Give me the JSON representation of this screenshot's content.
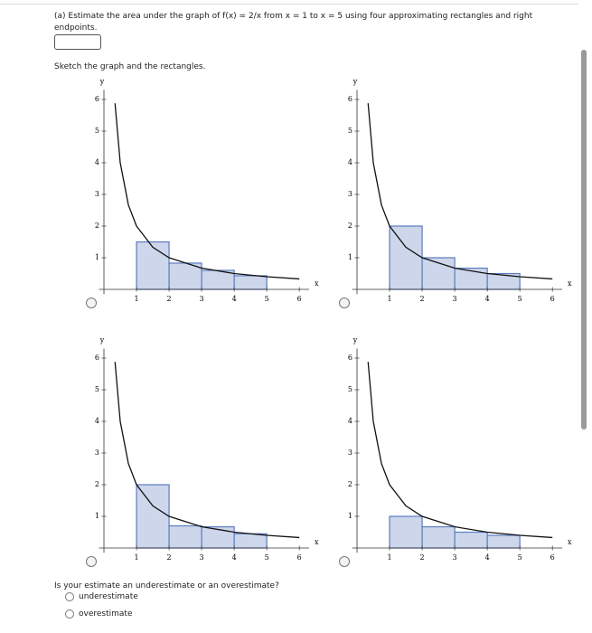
{
  "question": {
    "prompt": "(a) Estimate the area under the graph of f(x) = 2/x from x = 1 to x = 5 using four approximating rectangles and right endpoints.",
    "instruction": "Sketch the graph and the rectangles.",
    "follow_up": "Is your estimate an underestimate or an overestimate?",
    "options": [
      "underestimate",
      "overestimate"
    ]
  },
  "charts": [
    {
      "type": "histogram",
      "x_label": "x",
      "y_label": "y",
      "xlim": [
        -0.15,
        6.3
      ],
      "ylim": [
        -0.15,
        6.3
      ],
      "xticks": [
        1,
        2,
        3,
        4,
        5,
        6
      ],
      "yticks": [
        1,
        2,
        3,
        4,
        5,
        6
      ],
      "bins": [
        1,
        2,
        3,
        4,
        5
      ],
      "values": [
        1.5,
        0.83,
        0.6,
        0.43
      ],
      "color": "#cdd6ea",
      "edge_color": "#5b7bbf",
      "curve": {
        "x": [
          0.34,
          0.5,
          0.75,
          1,
          1.5,
          2,
          3,
          4,
          5,
          6
        ],
        "y": [
          5.88,
          4,
          2.67,
          2,
          1.33,
          1,
          0.67,
          0.5,
          0.4,
          0.33
        ],
        "color": "#111111"
      }
    },
    {
      "type": "histogram",
      "x_label": "x",
      "y_label": "y",
      "xlim": [
        -0.15,
        6.3
      ],
      "ylim": [
        -0.15,
        6.3
      ],
      "xticks": [
        1,
        2,
        3,
        4,
        5,
        6
      ],
      "yticks": [
        1,
        2,
        3,
        4,
        5,
        6
      ],
      "bins": [
        1,
        2,
        3,
        4,
        5
      ],
      "values": [
        2,
        1,
        0.67,
        0.5
      ],
      "color": "#cdd6ea",
      "edge_color": "#5b7bbf",
      "curve": {
        "x": [
          0.34,
          0.5,
          0.75,
          1,
          1.5,
          2,
          3,
          4,
          5,
          6
        ],
        "y": [
          5.88,
          4,
          2.67,
          2,
          1.33,
          1,
          0.67,
          0.5,
          0.4,
          0.33
        ],
        "color": "#111111"
      }
    },
    {
      "type": "histogram",
      "x_label": "x",
      "y_label": "y",
      "xlim": [
        -0.15,
        6.3
      ],
      "ylim": [
        -0.15,
        6.3
      ],
      "xticks": [
        1,
        2,
        3,
        4,
        5,
        6
      ],
      "yticks": [
        1,
        2,
        3,
        4,
        5,
        6
      ],
      "bins": [
        1,
        2,
        3,
        4,
        5
      ],
      "values": [
        2,
        0.7,
        0.67,
        0.45
      ],
      "color": "#cdd6ea",
      "edge_color": "#5b7bbf",
      "curve": {
        "x": [
          0.34,
          0.5,
          0.75,
          1,
          1.5,
          2,
          3,
          4,
          5,
          6
        ],
        "y": [
          5.88,
          4,
          2.67,
          2,
          1.33,
          1,
          0.67,
          0.5,
          0.4,
          0.33
        ],
        "color": "#111111"
      }
    },
    {
      "type": "histogram",
      "x_label": "x",
      "y_label": "y",
      "xlim": [
        -0.15,
        6.3
      ],
      "ylim": [
        -0.15,
        6.3
      ],
      "xticks": [
        1,
        2,
        3,
        4,
        5,
        6
      ],
      "yticks": [
        1,
        2,
        3,
        4,
        5,
        6
      ],
      "bins": [
        1,
        2,
        3,
        4,
        5
      ],
      "values": [
        1,
        0.67,
        0.5,
        0.4
      ],
      "color": "#cdd6ea",
      "edge_color": "#5b7bbf",
      "curve": {
        "x": [
          0.34,
          0.5,
          0.75,
          1,
          1.5,
          2,
          3,
          4,
          5,
          6
        ],
        "y": [
          5.88,
          4,
          2.67,
          2,
          1.33,
          1,
          0.67,
          0.5,
          0.4,
          0.33
        ],
        "color": "#111111"
      }
    }
  ]
}
